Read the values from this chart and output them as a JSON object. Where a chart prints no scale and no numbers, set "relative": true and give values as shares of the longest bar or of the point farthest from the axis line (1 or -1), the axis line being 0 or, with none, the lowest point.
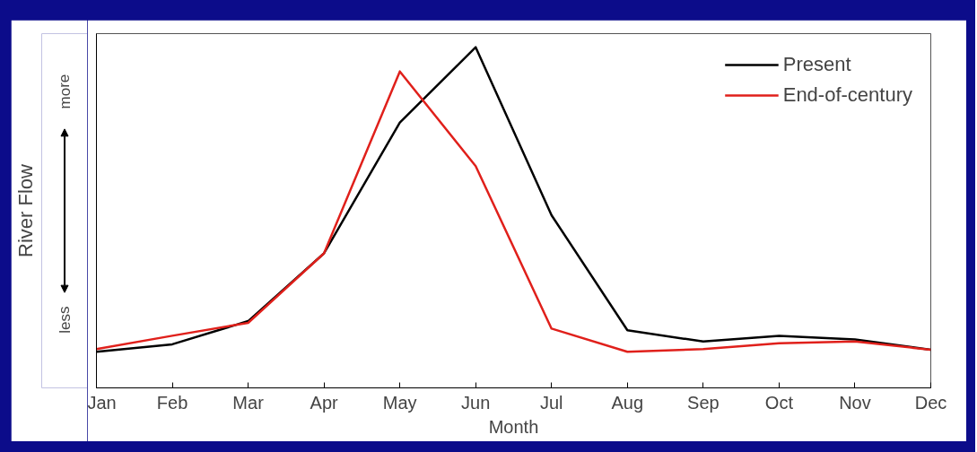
{
  "chart_data": {
    "type": "line",
    "relative": true,
    "xlabel": "Month",
    "ylabel": "River Flow",
    "categories": [
      "Jan",
      "Feb",
      "Mar",
      "Apr",
      "May",
      "Jun",
      "Jul",
      "Aug",
      "Sep",
      "Oct",
      "Nov",
      "Dec"
    ],
    "series": [
      {
        "name": "Present",
        "color": "#000000",
        "values": [
          0.106,
          0.128,
          0.196,
          0.395,
          0.779,
          1,
          0.507,
          0.169,
          0.136,
          0.153,
          0.142,
          0.112
        ]
      },
      {
        "name": "End-of-century",
        "color": "#e0201b",
        "values": [
          0.114,
          0.153,
          0.191,
          0.395,
          0.929,
          0.651,
          0.174,
          0.106,
          0.114,
          0.131,
          0.136,
          0.112
        ]
      }
    ],
    "annotations": [
      "less",
      "more"
    ],
    "legend": "top right",
    "grid": false,
    "marker": "none",
    "line_style": "solid"
  }
}
